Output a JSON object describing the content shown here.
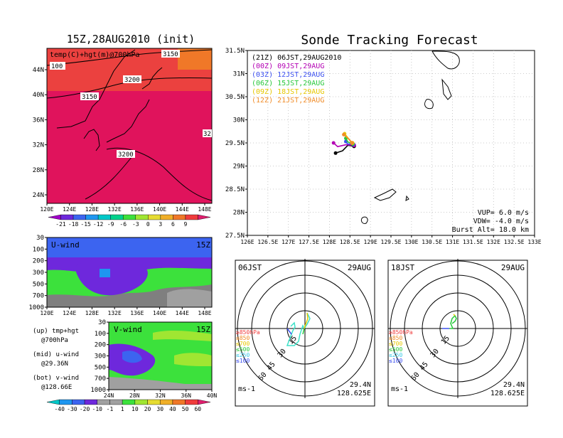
{
  "left_map": {
    "title": "15Z,28AUG2010 (init)",
    "field_label": "temp(C)+hgt(m)@700hPa",
    "contour_labels": [
      "100",
      "3150",
      "3200",
      "3150",
      "3200",
      "32"
    ],
    "lat_ticks": [
      "44N",
      "40N",
      "36N",
      "32N",
      "28N",
      "24N"
    ],
    "lon_ticks": [
      "120E",
      "124E",
      "128E",
      "132E",
      "136E",
      "140E",
      "144E",
      "148E"
    ],
    "colorbar_labels": [
      "-21",
      "-18",
      "-15",
      "-12",
      "-9",
      "-6",
      "-3",
      "0",
      "3",
      "6",
      "9"
    ],
    "colorbar_colors": [
      "#a000c8",
      "#6e28dc",
      "#3c64f0",
      "#1e96f0",
      "#00c8c8",
      "#00d28c",
      "#3ce13c",
      "#a0e632",
      "#e6dc32",
      "#f0af28",
      "#f07828",
      "#f03c3c",
      "#e11e6e"
    ]
  },
  "u_wind": {
    "label": "U-wind",
    "time": "15Z",
    "y_ticks": [
      "30",
      "100",
      "200",
      "300",
      "500",
      "700",
      "1000"
    ],
    "x_ticks": [
      "120E",
      "124E",
      "128E",
      "132E",
      "136E",
      "140E",
      "144E",
      "148E"
    ]
  },
  "v_wind": {
    "label": "V-wind",
    "time": "15Z",
    "y_ticks": [
      "30",
      "100",
      "200",
      "300",
      "500",
      "700",
      "1000"
    ],
    "x_ticks": [
      "24N",
      "28N",
      "32N",
      "36N",
      "40N"
    ],
    "colorbar_labels": [
      "-40",
      "-30",
      "-20",
      "-10",
      "-1",
      "1",
      "10",
      "20",
      "30",
      "40",
      "50",
      "60"
    ],
    "colorbar_colors": [
      "#00c8c8",
      "#1e96f0",
      "#3c64f0",
      "#6e28dc",
      "#a0a0a0",
      "#a0a0a0",
      "#3ce13c",
      "#a0e632",
      "#e6dc32",
      "#f0af28",
      "#f07828",
      "#f03c3c",
      "#e11e6e"
    ]
  },
  "legend_notes": [
    {
      "line1": "(up) tmp+hgt",
      "line2": "@700hPa"
    },
    {
      "line1": "(mid) u-wind",
      "line2": "@29.36N"
    },
    {
      "line1": "(bot) v-wind",
      "line2": "@128.66E"
    }
  ],
  "track_map": {
    "title": "Sonde Tracking Forecast",
    "lat_ticks": [
      "31.5N",
      "31N",
      "30.5N",
      "30N",
      "29.5N",
      "29N",
      "28.5N",
      "28N",
      "27.5N"
    ],
    "lon_ticks": [
      "126E",
      "126.5E",
      "127E",
      "127.5E",
      "128E",
      "128.5E",
      "129E",
      "129.5E",
      "130E",
      "130.5E",
      "131E",
      "131.5E",
      "132E",
      "132.5E",
      "133E"
    ],
    "params": [
      "VUP= 6.0 m/s",
      "VDW= -4.0 m/s",
      "Burst Alt= 18.0 km"
    ]
  },
  "chart_data": {
    "type": "scatter",
    "title": "Sonde Tracking Forecast",
    "x_range": [
      126,
      133
    ],
    "y_range": [
      27.5,
      31.5
    ],
    "series": [
      {
        "name": "(21Z) 06JST,29AUG2010",
        "color": "#000000",
        "points": [
          [
            128.6,
            29.43
          ],
          [
            128.45,
            29.45
          ],
          [
            128.32,
            29.33
          ],
          [
            128.15,
            29.28
          ]
        ]
      },
      {
        "name": "(00Z) 09JST,29AUG",
        "color": "#b400b4",
        "points": [
          [
            128.6,
            29.45
          ],
          [
            128.4,
            29.46
          ],
          [
            128.2,
            29.42
          ],
          [
            128.1,
            29.5
          ]
        ]
      },
      {
        "name": "(03Z) 12JST,29AUG",
        "color": "#3c50f0",
        "points": [
          [
            128.58,
            29.47
          ],
          [
            128.44,
            29.48
          ],
          [
            128.4,
            29.53
          ]
        ]
      },
      {
        "name": "(06Z) 15JST,29AUG",
        "color": "#28c83c",
        "points": [
          [
            128.57,
            29.48
          ],
          [
            128.45,
            29.52
          ],
          [
            128.4,
            29.6
          ]
        ]
      },
      {
        "name": "(09Z) 18JST,29AUG",
        "color": "#e6c800",
        "points": [
          [
            128.56,
            29.5
          ],
          [
            128.46,
            29.6
          ],
          [
            128.37,
            29.7
          ]
        ]
      },
      {
        "name": "(12Z) 21JST,29AUG",
        "color": "#f08c28",
        "points": [
          [
            128.55,
            29.5
          ],
          [
            128.45,
            29.6
          ],
          [
            128.35,
            29.68
          ]
        ]
      }
    ]
  },
  "hodo_left": {
    "time": "06JST",
    "date": "29AUG",
    "ring_labels": [
      "15",
      "30",
      "45",
      "60"
    ],
    "level_labels": [
      "≥850hPa",
      "≤850",
      "≤700",
      "≤500",
      "≤250",
      "≤100"
    ],
    "level_colors": [
      "#f03c3c",
      "#f08c28",
      "#e6c800",
      "#28c83c",
      "#3cc8e6",
      "#3c50f0"
    ],
    "unit": "ms-1",
    "lat": "29.4N",
    "lon": "128.625E"
  },
  "hodo_right": {
    "time": "18JST",
    "date": "29AUG",
    "ring_labels": [
      "15",
      "30",
      "45",
      "60"
    ],
    "level_labels": [
      "≥850hPa",
      "≤850",
      "≤700",
      "≤500",
      "≤250",
      "≤100"
    ],
    "level_colors": [
      "#f03c3c",
      "#f08c28",
      "#e6c800",
      "#28c83c",
      "#3cc8e6",
      "#3c50f0"
    ],
    "unit": "ms-1",
    "lat": "29.4N",
    "lon": "128.625E"
  }
}
